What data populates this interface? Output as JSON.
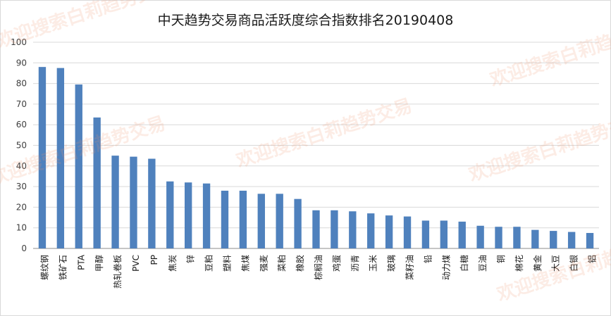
{
  "chart_data": {
    "type": "bar",
    "title": "中天趋势交易商品活跃度综合指数排名20190408",
    "ylim": [
      0,
      100
    ],
    "yticks": [
      0,
      10,
      20,
      30,
      40,
      50,
      60,
      70,
      80,
      90,
      100
    ],
    "grid": true,
    "legend": "none",
    "bar_color": "#4f81bd",
    "categories": [
      "螺纹钢",
      "铁矿石",
      "PTA",
      "甲醇",
      "热轧卷板",
      "PVC",
      "PP",
      "焦炭",
      "锌",
      "豆粕",
      "塑料",
      "焦煤",
      "强麦",
      "菜粕",
      "橡胶",
      "棕榈油",
      "鸡蛋",
      "沥青",
      "玉米",
      "玻璃",
      "菜籽油",
      "铅",
      "动力煤",
      "白糖",
      "豆油",
      "铜",
      "棉花",
      "黄金",
      "大豆",
      "白银",
      "铝"
    ],
    "values": [
      88,
      87.5,
      79.5,
      63.5,
      45,
      44.5,
      43.5,
      32.5,
      32,
      31.5,
      28,
      28,
      26.5,
      26.5,
      24,
      18.5,
      18.5,
      18,
      17,
      16,
      15.5,
      13.5,
      13.5,
      13,
      11,
      10.5,
      10.5,
      9,
      8.5,
      8,
      7.5
    ]
  },
  "watermark": "欢迎搜索白莉趋势交易"
}
